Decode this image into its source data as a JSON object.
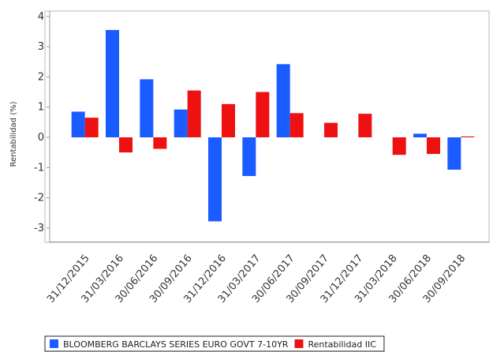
{
  "chart_data": {
    "type": "bar",
    "categories": [
      "31/12/2015",
      "31/03/2016",
      "30/06/2016",
      "30/09/2016",
      "31/12/2016",
      "31/03/2017",
      "30/06/2017",
      "30/09/2017",
      "31/12/2017",
      "31/03/2018",
      "30/06/2018",
      "30/09/2018"
    ],
    "series": [
      {
        "name": "BLOOMBERG BARCLAYS SERIES EURO GOVT 7-10YR",
        "color": "#1a5cff",
        "values": [
          0.85,
          3.55,
          1.92,
          0.92,
          -2.78,
          -1.28,
          2.42,
          null,
          null,
          null,
          0.12,
          -1.07
        ]
      },
      {
        "name": "Rentabilidad IIC",
        "color": "#ee1111",
        "values": [
          0.65,
          -0.5,
          -0.38,
          1.55,
          1.1,
          1.5,
          0.8,
          0.48,
          0.78,
          -0.58,
          -0.55,
          0.03
        ]
      }
    ],
    "ylabel": "Rentabilidad (%)",
    "ylim": [
      -3.5,
      4.2
    ],
    "yticks": [
      -3,
      -2,
      -1,
      0,
      1,
      2,
      3,
      4
    ],
    "legend_position": "bottom"
  }
}
